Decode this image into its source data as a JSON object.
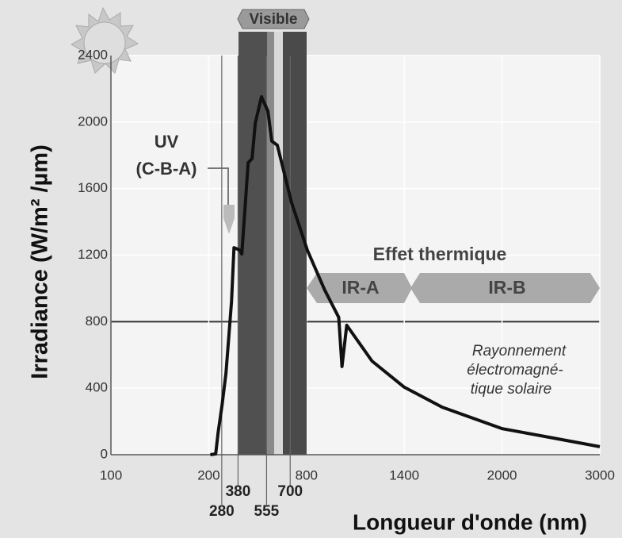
{
  "chart_data": {
    "type": "line",
    "y_label": "Irradiance (W/m² /µm)",
    "x_label": "Longueur d'onde (nm)",
    "x": [
      210,
      243,
      258,
      282,
      306,
      340,
      355,
      389,
      403,
      442,
      466,
      486,
      524,
      563,
      587,
      621,
      708,
      805,
      911,
      998,
      1018,
      1047,
      1202,
      1400,
      1633,
      2000,
      2525,
      3000
    ],
    "values": [
      0,
      5,
      134,
      300,
      491,
      921,
      1245,
      1231,
      1207,
      1756,
      1780,
      1994,
      2152,
      2066,
      1885,
      1861,
      1517,
      1231,
      992,
      826,
      530,
      778,
      563,
      406,
      286,
      157,
      100,
      48
    ],
    "color": "#111111",
    "xlim": [
      100,
      3000
    ],
    "xticks": [
      100,
      200,
      800,
      1400,
      2000,
      3000
    ],
    "marked_wavelengths": [
      280,
      380,
      555,
      700
    ],
    "ylim": [
      0,
      2400
    ],
    "yticks": [
      0,
      400,
      800,
      1200,
      1600,
      2000,
      2400
    ],
    "grid": true,
    "annotations": {
      "visible": "Visible",
      "uv": "UV",
      "uv_sub": "(C-B-A)",
      "thermal": "Effet thermique",
      "ira": "IR-A",
      "irb": "IR-B",
      "ray1": "Rayonnement",
      "ray2": "électromagné-",
      "ray3": "tique solaire"
    }
  }
}
